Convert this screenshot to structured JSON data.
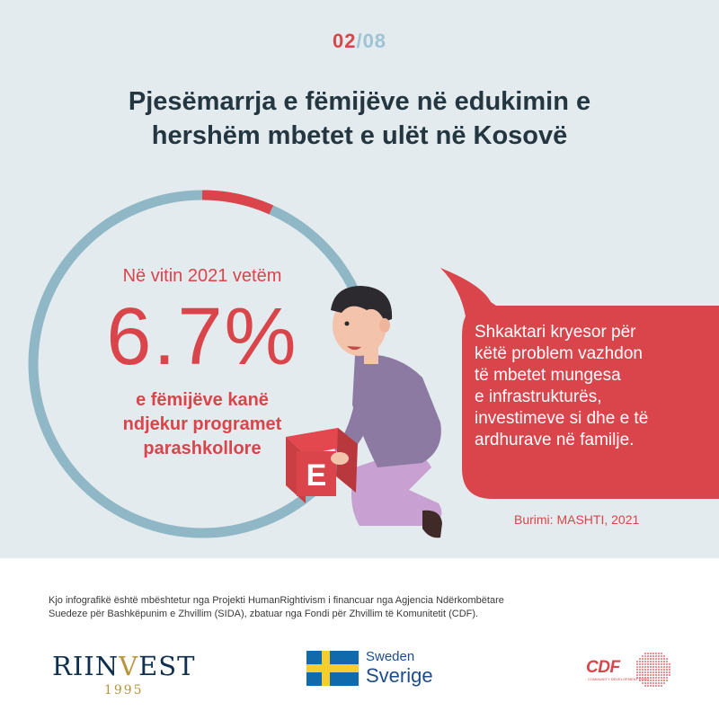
{
  "pager": {
    "current": "02",
    "separator": "/",
    "total": "08"
  },
  "title": {
    "line1": "Pjesëmarrja e fëmijëve në edukimin e",
    "line2": "hershëm mbetet e ulët në Kosovë"
  },
  "stat": {
    "prefix": "Në vitin 2021 vetëm",
    "value": "6.7%",
    "percent": 6.7,
    "suffix_line1": "e fëmijëve kanë",
    "suffix_line2": "ndjekur programet",
    "suffix_line3": "parashkollore"
  },
  "block_letter": "E",
  "bubble": {
    "line1": "Shkaktari kryesor për",
    "line2": "këtë problem vazhdon",
    "line3": "të mbetet mungesa",
    "line4": "e infrastrukturës,",
    "line5": "investimeve si dhe e të",
    "line6": "ardhurave në familje."
  },
  "source": "Burimi: MASHTI, 2021",
  "credit": {
    "line1": "Kjo infografikë  është mbështetur nga Projekti HumanRightivism i financuar nga Agjencia Ndërkombëtare",
    "line2": "Suedeze për Bashkëpunim e Zhvillim (SIDA), zbatuar nga Fondi për Zhvillim të Komunitetit (CDF)."
  },
  "logos": {
    "riinvest": {
      "name_a": "RIIN",
      "name_v": "V",
      "name_b": "EST",
      "year": "1995"
    },
    "sweden": {
      "line1": "Sweden",
      "line2": "Sverige"
    },
    "cdf": {
      "text": "CDF",
      "sub": "COMMUNITY DEVELOPMENT FUND"
    }
  },
  "colors": {
    "accent": "#d9454a",
    "ring": "#8fb7c6",
    "background": "#e3ebef",
    "title": "#243640"
  },
  "icons": [
    "ring-progress-icon",
    "child-illustration",
    "speech-bubble-icon",
    "swedish-flag-icon",
    "cdf-map-icon"
  ]
}
